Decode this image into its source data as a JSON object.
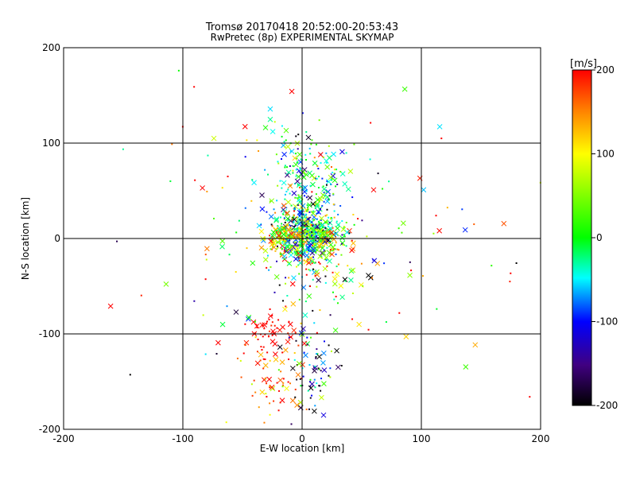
{
  "chart_data": {
    "type": "scatter",
    "title": "Tromsø 20170418 20:52:00-20:53:43",
    "subtitle": "RwPretec (8p) EXPERIMENTAL SKYMAP",
    "xlabel": "E-W location [km]",
    "ylabel": "N-S location [km]",
    "xlim": [
      -200,
      200
    ],
    "ylim": [
      -200,
      200
    ],
    "xticks": [
      "-200",
      "-100",
      "0",
      "100",
      "200"
    ],
    "yticks": [
      "-200",
      "-100",
      "0",
      "100",
      "200"
    ],
    "grid": true,
    "marker_note": "x = large markers, dots = small markers; colour = velocity",
    "colorbar": {
      "label": "[m/s]",
      "range": [
        -200,
        200
      ],
      "ticks": [
        "200",
        "100",
        "0",
        "-100",
        "-200"
      ]
    },
    "clusters": [
      {
        "center": [
          5,
          5
        ],
        "spread": [
          12,
          12
        ],
        "count": 450,
        "velocity_mean": 0,
        "velocity_spread": 90
      },
      {
        "center": [
          -15,
          0
        ],
        "spread": [
          8,
          8
        ],
        "count": 120,
        "velocity_mean": 100,
        "velocity_spread": 80
      },
      {
        "center": [
          0,
          50
        ],
        "spread": [
          18,
          30
        ],
        "count": 220,
        "velocity_mean": -40,
        "velocity_spread": 60
      },
      {
        "center": [
          -28,
          -95
        ],
        "spread": [
          10,
          10
        ],
        "count": 45,
        "velocity_mean": 200,
        "velocity_spread": 10
      },
      {
        "center": [
          -25,
          -140
        ],
        "spread": [
          15,
          20
        ],
        "count": 70,
        "velocity_mean": 170,
        "velocity_spread": 50
      },
      {
        "center": [
          8,
          -140
        ],
        "spread": [
          10,
          25
        ],
        "count": 70,
        "velocity_mean": -120,
        "velocity_spread": 80
      },
      {
        "center": [
          5,
          -20
        ],
        "spread": [
          20,
          30
        ],
        "count": 160,
        "velocity_mean": 30,
        "velocity_spread": 120
      },
      {
        "center": [
          0,
          0
        ],
        "spread": [
          80,
          80
        ],
        "count": 160,
        "velocity_mean": 60,
        "velocity_spread": 140
      }
    ]
  }
}
